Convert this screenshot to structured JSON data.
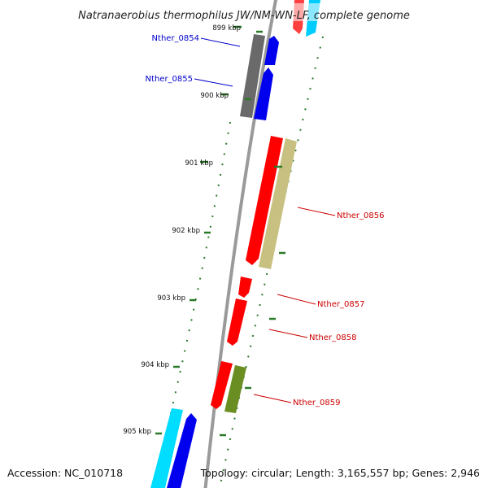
{
  "title": "Natranaerobius thermophilus JW/NM-WN-LF, complete genome",
  "footer": {
    "accession": "Accession: NC_010718",
    "topology": "Topology: circular; Length: 3,165,557 bp; Genes: 2,946"
  },
  "ticks": [
    {
      "label": "899 kbp",
      "kbp": 899
    },
    {
      "label": "900 kbp",
      "kbp": 900
    },
    {
      "label": "901 kbp",
      "kbp": 901
    },
    {
      "label": "902 kbp",
      "kbp": 902
    },
    {
      "label": "903 kbp",
      "kbp": 903
    },
    {
      "label": "904 kbp",
      "kbp": 904
    },
    {
      "label": "905 kbp",
      "kbp": 905
    }
  ],
  "gene_labels": [
    {
      "name": "Nther_0854",
      "color": "#0000cc"
    },
    {
      "name": "Nther_0855",
      "color": "#0000cc"
    },
    {
      "name": "Nther_0856",
      "color": "#cc0000"
    },
    {
      "name": "Nther_0857",
      "color": "#cc0000"
    },
    {
      "name": "Nther_0858",
      "color": "#cc0000"
    },
    {
      "name": "Nther_0859",
      "color": "#cc0000"
    }
  ],
  "feature_colors": {
    "forward_cds": "#ff0000",
    "reverse_cds": "#0000ee",
    "gray_feature": "#6a6a6a",
    "khaki_feature": "#c8c080",
    "olive_feature": "#6b8e23",
    "cyan_feature": "#00ddff",
    "tick_green": "#2a7a2a"
  }
}
